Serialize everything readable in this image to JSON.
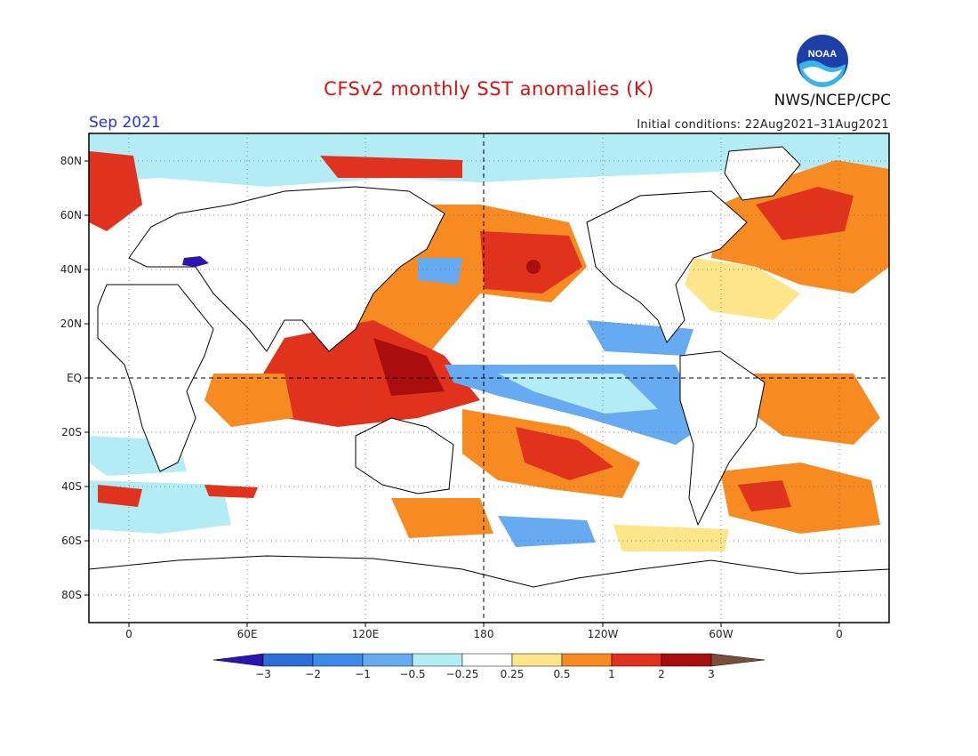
{
  "title": "CFSv2 monthly SST anomalies (K)",
  "agency": "NWS/NCEP/CPC",
  "logo_text": "NOAA",
  "forecast_month": "Sep 2021",
  "initial_conditions": "Initial conditions: 22Aug2021–31Aug2021",
  "lat_labels": [
    "80N",
    "60N",
    "40N",
    "20N",
    "EQ",
    "20S",
    "40S",
    "60S",
    "80S"
  ],
  "lon_labels": [
    "0",
    "60E",
    "120E",
    "180",
    "120W",
    "60W",
    "0"
  ],
  "colorbar": {
    "labels": [
      "−3",
      "−2",
      "−1",
      "−0.5",
      "−0.25",
      "0.25",
      "0.5",
      "1",
      "2",
      "3"
    ],
    "colors": [
      "#2a14b4",
      "#2b6fd6",
      "#3c8be8",
      "#66aaf2",
      "#b4ecf6",
      "#ffffff",
      "#fde58a",
      "#f88a22",
      "#e0321c",
      "#aa0d0d",
      "#7a4e3a"
    ]
  },
  "anomaly_colors": {
    "neg3": "#2a14b4",
    "neg2": "#2b6fd6",
    "neg1": "#3c8be8",
    "neg05": "#66aaf2",
    "neg025": "#b4ecf6",
    "pos025": "#fde58a",
    "pos05": "#f88a22",
    "pos1": "#e0321c",
    "pos2": "#aa0d0d",
    "pos3": "#7a4e3a"
  }
}
